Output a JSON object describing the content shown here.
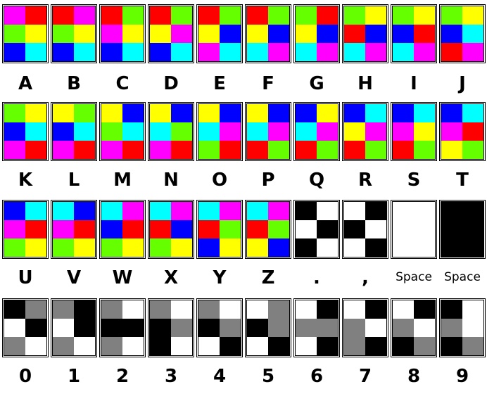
{
  "palette": {
    "R": "#ff0000",
    "G": "#66ff00",
    "B": "#0000ff",
    "Y": "#ffff00",
    "M": "#ff00ff",
    "C": "#00ffff",
    "K": "#000000",
    "W": "#ffffff",
    "A": "#808080"
  },
  "rows": [
    [
      {
        "label": "A",
        "cells": [
          "M",
          "R",
          "G",
          "Y",
          "B",
          "C"
        ]
      },
      {
        "label": "B",
        "cells": [
          "R",
          "M",
          "G",
          "Y",
          "B",
          "C"
        ]
      },
      {
        "label": "C",
        "cells": [
          "R",
          "G",
          "M",
          "Y",
          "B",
          "C"
        ]
      },
      {
        "label": "D",
        "cells": [
          "R",
          "G",
          "Y",
          "M",
          "B",
          "C"
        ]
      },
      {
        "label": "E",
        "cells": [
          "R",
          "G",
          "Y",
          "B",
          "M",
          "C"
        ]
      },
      {
        "label": "F",
        "cells": [
          "R",
          "G",
          "Y",
          "B",
          "C",
          "M"
        ]
      },
      {
        "label": "G",
        "cells": [
          "G",
          "R",
          "Y",
          "B",
          "C",
          "M"
        ]
      },
      {
        "label": "H",
        "cells": [
          "G",
          "Y",
          "R",
          "B",
          "C",
          "M"
        ]
      },
      {
        "label": "I",
        "cells": [
          "G",
          "Y",
          "B",
          "R",
          "C",
          "M"
        ]
      },
      {
        "label": "J",
        "cells": [
          "G",
          "Y",
          "B",
          "C",
          "R",
          "M"
        ]
      }
    ],
    [
      {
        "label": "K",
        "cells": [
          "G",
          "Y",
          "B",
          "C",
          "M",
          "R"
        ]
      },
      {
        "label": "L",
        "cells": [
          "Y",
          "G",
          "B",
          "C",
          "M",
          "R"
        ]
      },
      {
        "label": "M",
        "cells": [
          "Y",
          "B",
          "G",
          "C",
          "M",
          "R"
        ]
      },
      {
        "label": "N",
        "cells": [
          "Y",
          "B",
          "C",
          "G",
          "M",
          "R"
        ]
      },
      {
        "label": "O",
        "cells": [
          "Y",
          "B",
          "C",
          "M",
          "G",
          "R"
        ]
      },
      {
        "label": "P",
        "cells": [
          "Y",
          "B",
          "C",
          "M",
          "R",
          "G"
        ]
      },
      {
        "label": "Q",
        "cells": [
          "B",
          "Y",
          "C",
          "M",
          "R",
          "G"
        ]
      },
      {
        "label": "R",
        "cells": [
          "B",
          "C",
          "Y",
          "M",
          "R",
          "G"
        ]
      },
      {
        "label": "S",
        "cells": [
          "B",
          "C",
          "M",
          "Y",
          "R",
          "G"
        ]
      },
      {
        "label": "T",
        "cells": [
          "B",
          "C",
          "M",
          "R",
          "Y",
          "G"
        ]
      }
    ],
    [
      {
        "label": "U",
        "cells": [
          "B",
          "C",
          "M",
          "R",
          "G",
          "Y"
        ]
      },
      {
        "label": "V",
        "cells": [
          "C",
          "B",
          "M",
          "R",
          "G",
          "Y"
        ]
      },
      {
        "label": "W",
        "cells": [
          "C",
          "M",
          "B",
          "R",
          "G",
          "Y"
        ]
      },
      {
        "label": "X",
        "cells": [
          "C",
          "M",
          "R",
          "B",
          "G",
          "Y"
        ]
      },
      {
        "label": "Y",
        "cells": [
          "C",
          "M",
          "R",
          "G",
          "B",
          "Y"
        ]
      },
      {
        "label": "Z",
        "cells": [
          "C",
          "M",
          "R",
          "G",
          "Y",
          "B"
        ]
      },
      {
        "label": ".",
        "cells": [
          "K",
          "W",
          "W",
          "K",
          "K",
          "W"
        ]
      },
      {
        "label": ",",
        "cells": [
          "W",
          "K",
          "K",
          "W",
          "W",
          "K"
        ]
      },
      {
        "label": "Space",
        "cells": [
          "W",
          "W",
          "W",
          "W",
          "W",
          "W"
        ]
      },
      {
        "label": "Space",
        "cells": [
          "K",
          "K",
          "K",
          "K",
          "K",
          "K"
        ]
      }
    ],
    [
      {
        "label": "0",
        "cells": [
          "K",
          "A",
          "W",
          "K",
          "A",
          "W"
        ]
      },
      {
        "label": "1",
        "cells": [
          "A",
          "K",
          "W",
          "K",
          "A",
          "W"
        ]
      },
      {
        "label": "2",
        "cells": [
          "A",
          "W",
          "K",
          "K",
          "A",
          "W"
        ]
      },
      {
        "label": "3",
        "cells": [
          "A",
          "W",
          "K",
          "A",
          "K",
          "W"
        ]
      },
      {
        "label": "4",
        "cells": [
          "A",
          "W",
          "K",
          "A",
          "W",
          "K"
        ]
      },
      {
        "label": "5",
        "cells": [
          "W",
          "A",
          "K",
          "A",
          "W",
          "K"
        ]
      },
      {
        "label": "6",
        "cells": [
          "W",
          "K",
          "A",
          "A",
          "W",
          "K"
        ]
      },
      {
        "label": "7",
        "cells": [
          "W",
          "K",
          "A",
          "W",
          "A",
          "K"
        ]
      },
      {
        "label": "8",
        "cells": [
          "W",
          "K",
          "A",
          "W",
          "K",
          "A"
        ]
      },
      {
        "label": "9",
        "cells": [
          "K",
          "W",
          "A",
          "W",
          "K",
          "A"
        ]
      }
    ]
  ]
}
